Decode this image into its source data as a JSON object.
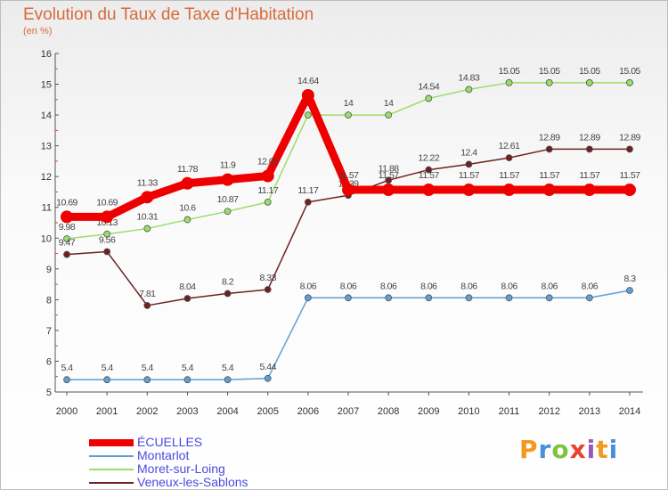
{
  "chart_data": {
    "type": "line",
    "title": "Evolution du Taux de Taxe d'Habitation",
    "subtitle": "(en %)",
    "xlabel": "",
    "ylabel": "",
    "ylim": [
      5,
      16
    ],
    "yticks": [
      "5",
      "6",
      "7",
      "8",
      "9",
      "10",
      "11",
      "12",
      "13",
      "14",
      "15",
      "16"
    ],
    "categories": [
      "2000",
      "2001",
      "2002",
      "2003",
      "2004",
      "2005",
      "2006",
      "2007",
      "2008",
      "2009",
      "2010",
      "2011",
      "2012",
      "2013",
      "2014"
    ],
    "series": [
      {
        "name": "ÉCUELLES",
        "color": "#ee0000",
        "values": [
          10.69,
          10.69,
          11.33,
          11.78,
          11.9,
          12.02,
          14.64,
          11.57,
          11.57,
          11.57,
          11.57,
          11.57,
          11.57,
          11.57,
          11.57
        ],
        "labels": [
          "10.69",
          "10.69",
          "11.33",
          "11.78",
          "11.9",
          "12.02",
          "14.64",
          "11.57",
          "11.57",
          "11.57",
          "11.57",
          "11.57",
          "11.57",
          "11.57",
          "11.57"
        ]
      },
      {
        "name": "Montarlot",
        "color": "#5e9fd6",
        "values": [
          5.4,
          5.4,
          5.4,
          5.4,
          5.4,
          5.44,
          8.06,
          8.06,
          8.06,
          8.06,
          8.06,
          8.06,
          8.06,
          8.06,
          8.3
        ],
        "labels": [
          "5.4",
          "5.4",
          "5.4",
          "5.4",
          "5.4",
          "5.44",
          "8.06",
          "8.06",
          "8.06",
          "8.06",
          "8.06",
          "8.06",
          "8.06",
          "8.06",
          "8.3"
        ]
      },
      {
        "name": "Moret-sur-Loing",
        "color": "#98de6a",
        "values": [
          9.98,
          10.13,
          10.31,
          10.6,
          10.87,
          11.17,
          14,
          14,
          14,
          14.54,
          14.83,
          15.05,
          15.05,
          15.05,
          15.05
        ],
        "labels": [
          "9.98",
          "10.13",
          "10.31",
          "10.6",
          "10.87",
          "11.17",
          "14",
          "14",
          "14",
          "14.54",
          "14.83",
          "15.05",
          "15.05",
          "15.05",
          "15.05"
        ]
      },
      {
        "name": "Veneux-les-Sablons",
        "color": "#6f2020",
        "values": [
          9.47,
          9.56,
          7.81,
          8.04,
          8.2,
          8.33,
          11.17,
          11.39,
          11.88,
          12.22,
          12.4,
          12.61,
          12.89,
          12.89,
          12.89
        ],
        "labels": [
          "9.47",
          "9.56",
          "7.81",
          "8.04",
          "8.2",
          "8.33",
          "11.17",
          "11.39",
          "11.88",
          "12.22",
          "12.4",
          "12.61",
          "12.89",
          "12.89",
          "12.89"
        ]
      }
    ],
    "legend_position": "bottom-left"
  },
  "logo": {
    "text": "Proxiti",
    "colors": [
      "#f39a1e",
      "#4a8fd9",
      "#7fc242",
      "#e8432e",
      "#9b59b6",
      "#f39a1e",
      "#4a8fd9"
    ]
  }
}
